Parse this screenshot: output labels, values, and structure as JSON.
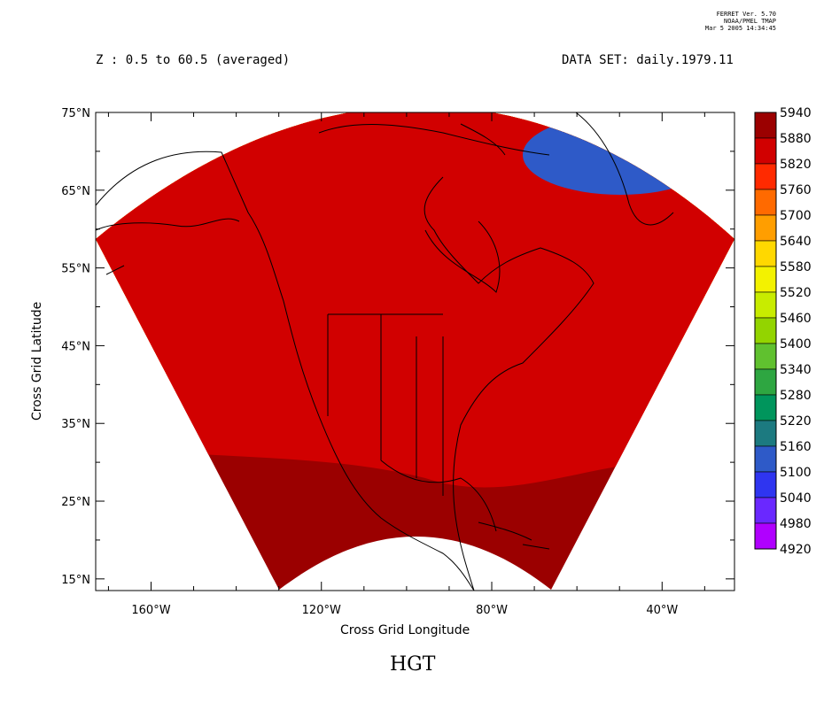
{
  "header": {
    "version_lines": [
      "FERRET Ver. 5.70",
      "NOAA/PMEL TMAP",
      "Mar  5 2005 14:34:45"
    ],
    "z_label": "Z : 0.5 to 60.5 (averaged)",
    "dataset_label": "DATA SET: daily.1979.11"
  },
  "chart_data": {
    "type": "heatmap",
    "title": "HGT",
    "xlabel": "Cross Grid Longitude",
    "ylabel": "Cross Grid Latitude",
    "xlim": [
      -173,
      -23
    ],
    "ylim": [
      13.5,
      75
    ],
    "x_ticks": [
      "160°W",
      "120°W",
      "80°W",
      "40°W"
    ],
    "x_tick_values": [
      -160,
      -120,
      -80,
      -40
    ],
    "y_ticks": [
      "75°N",
      "65°N",
      "55°N",
      "45°N",
      "35°N",
      "25°N",
      "15°N"
    ],
    "y_tick_values": [
      75,
      65,
      55,
      45,
      35,
      25,
      15
    ],
    "colorbar": {
      "levels": [
        "5940",
        "5880",
        "5820",
        "5760",
        "5700",
        "5640",
        "5580",
        "5520",
        "5460",
        "5400",
        "5340",
        "5280",
        "5220",
        "5160",
        "5100",
        "5040",
        "4980",
        "4920"
      ],
      "colors": [
        "#9b0000",
        "#d10000",
        "#ff2a00",
        "#ff6a00",
        "#ff9e00",
        "#ffd800",
        "#f3f200",
        "#c8ec00",
        "#93d400",
        "#60c12f",
        "#2ea641",
        "#00955c",
        "#1c7a80",
        "#2e5ac8",
        "#2f35f0",
        "#6a28ff",
        "#b000ff"
      ]
    },
    "bands": [
      {
        "level": "5220",
        "color": "#1c7a80"
      },
      {
        "level": "5280",
        "color": "#00955c"
      },
      {
        "level": "5340",
        "color": "#2ea641"
      },
      {
        "level": "5400",
        "color": "#60c12f"
      },
      {
        "level": "5460",
        "color": "#93d400"
      },
      {
        "level": "5520",
        "color": "#c8ec00"
      },
      {
        "level": "5580",
        "color": "#f3f200"
      },
      {
        "level": "5640",
        "color": "#ffd800"
      },
      {
        "level": "5700",
        "color": "#ff9e00"
      },
      {
        "level": "5760",
        "color": "#ff6a00"
      },
      {
        "level": "5820",
        "color": "#ff2a00"
      },
      {
        "level": "5880",
        "color": "#d10000"
      }
    ],
    "minimum_region": {
      "level": "5160",
      "color": "#2e5ac8"
    },
    "maximum_region": {
      "level": "5940",
      "color": "#9b0000"
    }
  }
}
